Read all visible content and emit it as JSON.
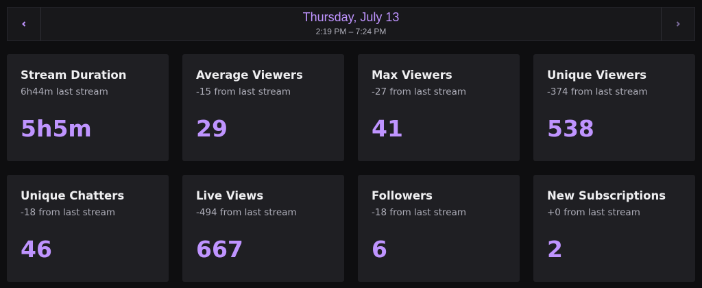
{
  "header": {
    "date": "Thursday, July 13",
    "time_range": "2:19 PM – 7:24 PM"
  },
  "cards": [
    {
      "title": "Stream Duration",
      "subtitle": "6h44m last stream",
      "value": "5h5m"
    },
    {
      "title": "Average Viewers",
      "subtitle": "-15 from last stream",
      "value": 29
    },
    {
      "title": "Max Viewers",
      "subtitle": "-27 from last stream",
      "value": 41
    },
    {
      "title": "Unique Viewers",
      "subtitle": "-374 from last stream",
      "value": 538
    },
    {
      "title": "Unique Chatters",
      "subtitle": "-18 from last stream",
      "value": 46
    },
    {
      "title": "Live Views",
      "subtitle": "-494 from last stream",
      "value": 667
    },
    {
      "title": "Followers",
      "subtitle": "-18 from last stream",
      "value": 6
    },
    {
      "title": "New Subscriptions",
      "subtitle": "+0 from last stream",
      "value": 2
    }
  ]
}
